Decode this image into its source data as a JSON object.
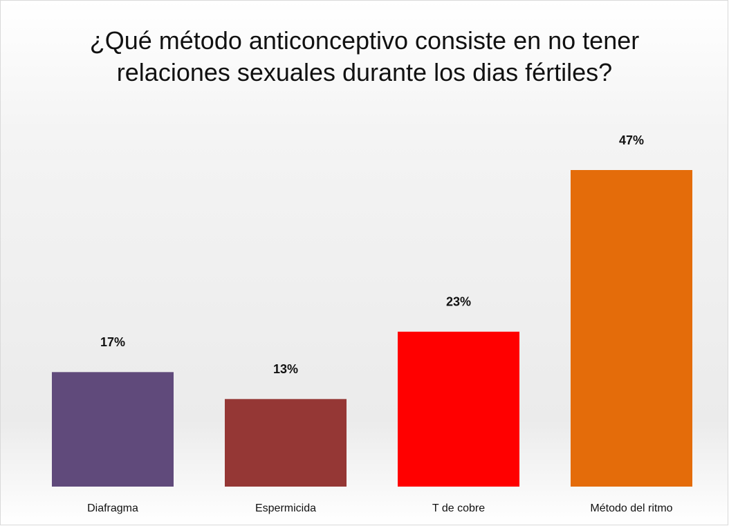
{
  "chart_data": {
    "type": "bar",
    "title": "¿Qué método anticonceptivo consiste en no tener relaciones sexuales durante los dias fértiles?",
    "categories": [
      "Diafragma",
      "Espermicida",
      "T de cobre",
      "Método del ritmo"
    ],
    "values": [
      17,
      13,
      23,
      47
    ],
    "value_labels": [
      "17%",
      "13%",
      "23%",
      "47%"
    ],
    "colors": [
      "#604a7b",
      "#953735",
      "#ff0000",
      "#e46c0a"
    ]
  }
}
